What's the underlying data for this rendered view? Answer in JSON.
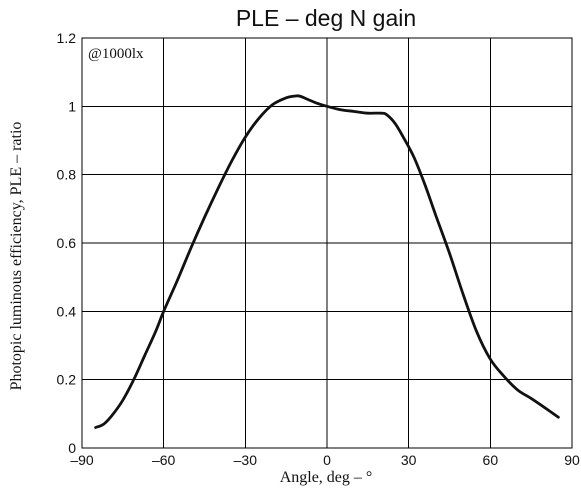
{
  "chart_data": {
    "type": "line",
    "title": "PLE – deg  N gain",
    "xlabel": "Angle, deg – °",
    "ylabel": "Photopic luminous efficiency, PLE – ratio",
    "annotation": "@1000lx",
    "xlim": [
      -90,
      90
    ],
    "ylim": [
      0,
      1.2
    ],
    "xticks": [
      -90,
      -60,
      -30,
      0,
      30,
      60,
      90
    ],
    "yticks": [
      0,
      0.2,
      0.4,
      0.6,
      0.8,
      1,
      1.2
    ],
    "xtick_labels": [
      "–90",
      "–60",
      "–30",
      "0",
      "30",
      "60",
      "90"
    ],
    "ytick_labels": [
      "0",
      "0.2",
      "0.4",
      "0.6",
      "0.8",
      "1",
      "1.2"
    ],
    "grid": true,
    "series": [
      {
        "x": [
          -85,
          -82,
          -79,
          -75,
          -71,
          -67,
          -63,
          -60,
          -55,
          -50,
          -45,
          -40,
          -35,
          -30,
          -25,
          -20,
          -15,
          -12,
          -10,
          -7,
          -4,
          0,
          5,
          10,
          15,
          20,
          22,
          25,
          28,
          32,
          36,
          40,
          45,
          50,
          55,
          60,
          65,
          70,
          75,
          80,
          85
        ],
        "y": [
          0.06,
          0.07,
          0.095,
          0.14,
          0.2,
          0.27,
          0.34,
          0.4,
          0.49,
          0.585,
          0.675,
          0.76,
          0.84,
          0.91,
          0.965,
          1.005,
          1.025,
          1.03,
          1.03,
          1.02,
          1.01,
          1.0,
          0.99,
          0.985,
          0.98,
          0.98,
          0.975,
          0.95,
          0.91,
          0.85,
          0.77,
          0.68,
          0.57,
          0.45,
          0.34,
          0.26,
          0.21,
          0.17,
          0.145,
          0.118,
          0.09
        ]
      }
    ]
  },
  "colors": {
    "line": "#111111",
    "grid": "#000000",
    "background": "#ffffff"
  }
}
